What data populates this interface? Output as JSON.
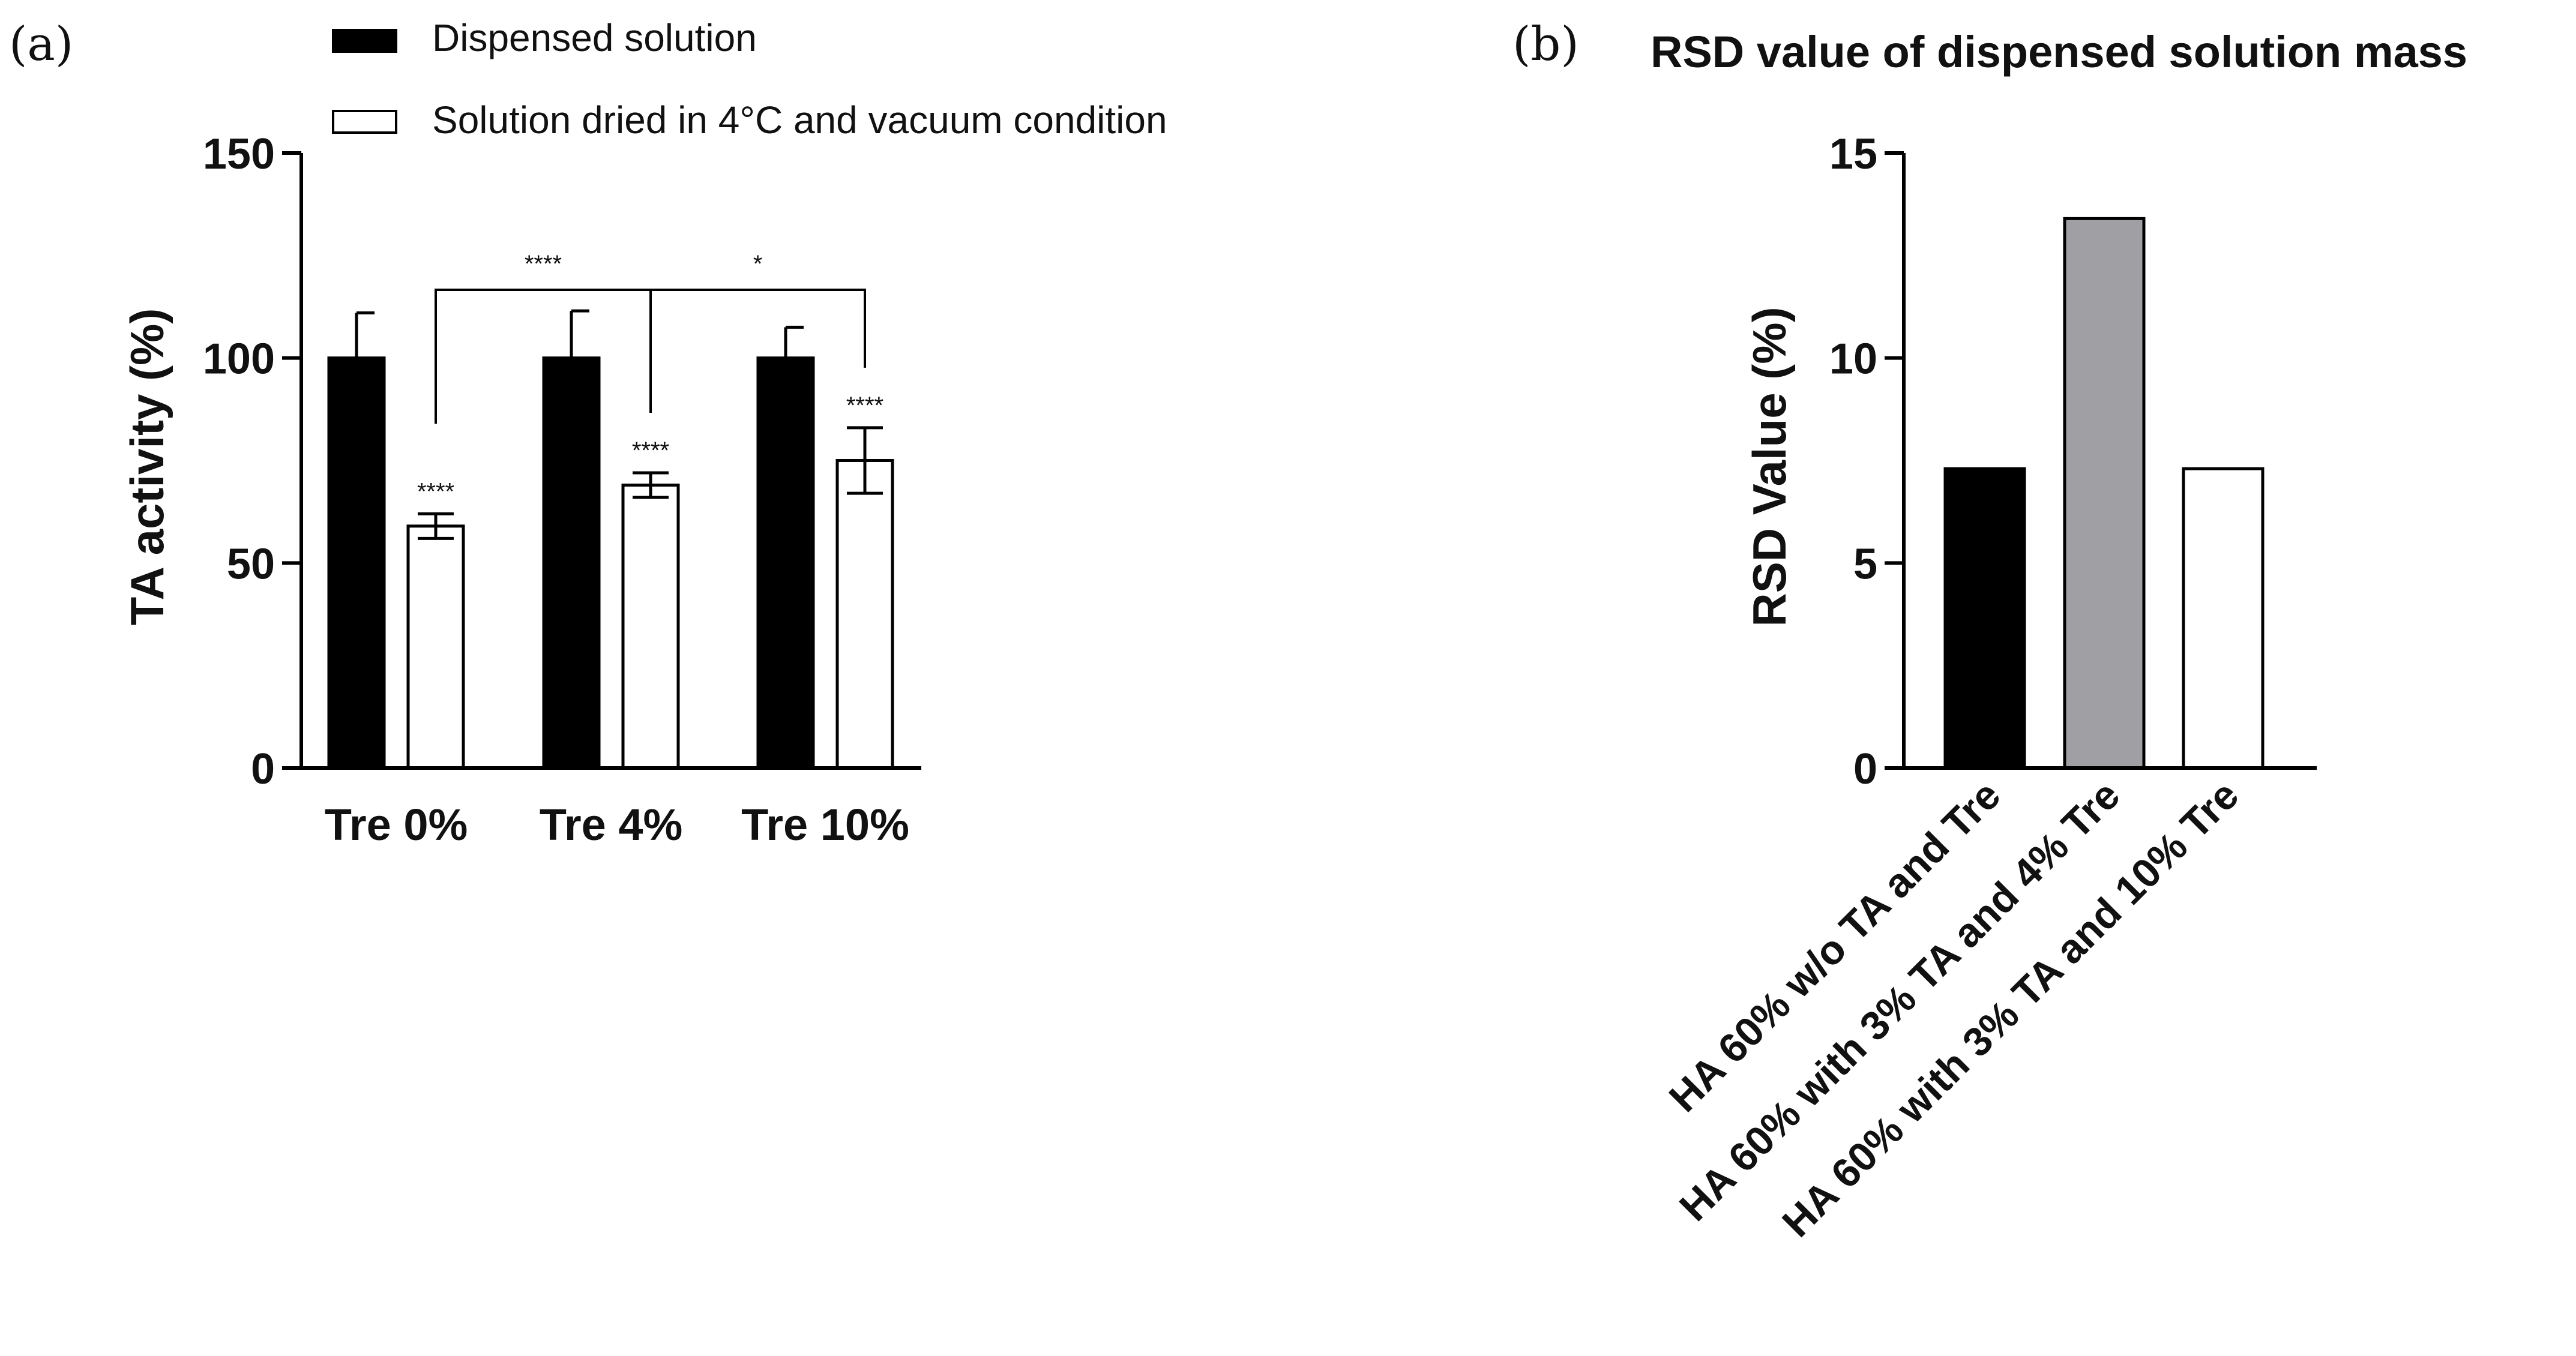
{
  "chart_data": [
    {
      "panel": "(a)",
      "type": "bar",
      "title": "",
      "ylabel": "TA activity (%)",
      "xlabel": "",
      "ylim": [
        0,
        150
      ],
      "yticks": [
        0,
        50,
        100,
        150
      ],
      "categories": [
        "Tre 0%",
        "Tre 4%",
        "Tre 10%"
      ],
      "series": [
        {
          "name": "Dispensed solution",
          "fill": "#000000",
          "values": [
            100,
            100,
            100
          ],
          "errors": [
            11,
            11.5,
            7.5
          ],
          "markers": [
            "",
            "",
            ""
          ]
        },
        {
          "name": "Solution dried in 4°C and vacuum condition",
          "fill": "#ffffff",
          "values": [
            59,
            69,
            75
          ],
          "errors": [
            3,
            3,
            8
          ],
          "markers": [
            "****",
            "****",
            "****"
          ]
        }
      ],
      "legend": "top",
      "brackets": [
        {
          "from": 0,
          "to": 1,
          "label": "****"
        },
        {
          "from": 1,
          "to": 2,
          "label": "*"
        }
      ]
    },
    {
      "panel": "(b)",
      "type": "bar",
      "title": "RSD value of dispensed solution mass",
      "ylabel": "RSD Value (%)",
      "xlabel": "",
      "ylim": [
        0,
        15
      ],
      "yticks": [
        0,
        5,
        10,
        15
      ],
      "categories": [
        "HA 60% w/o TA and Tre",
        "HA 60% with 3% TA and 4% Tre",
        "HA 60% with 3% TA and 10% Tre"
      ],
      "values": [
        7.3,
        13.4,
        7.3
      ],
      "colors": [
        "#000000",
        "#a0a0a4",
        "#ffffff"
      ]
    }
  ]
}
